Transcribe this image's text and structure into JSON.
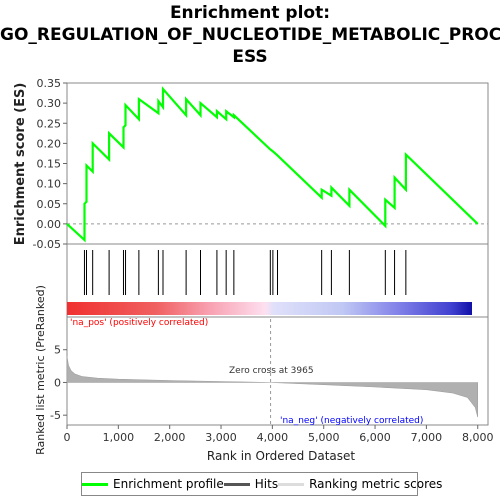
{
  "title": {
    "line1": "Enrichment plot:",
    "line2": "GO_REGULATION_OF_NUCLEOTIDE_METABOLIC_PROC",
    "line3": "ESS"
  },
  "colors": {
    "enrichment_line": "#00ff00",
    "hit_line": "#000000",
    "ranking_fill": "#b0b0b0",
    "pos_label": "#ff0000",
    "neg_label": "#0000ff",
    "zero_cross_line": "#999999"
  },
  "legend": {
    "enrichment_label": "Enrichment profile",
    "hits_label": "Hits",
    "ranking_label": "Ranking metric scores"
  },
  "chart_data": {
    "type": "line",
    "top_panel": {
      "ylabel": "Enrichment score (ES)",
      "ylim": [
        -0.05,
        0.35
      ],
      "yticks": [
        "-0.05",
        "0.00",
        "0.05",
        "0.10",
        "0.15",
        "0.20",
        "0.25",
        "0.30",
        "0.35"
      ],
      "series": [
        {
          "x": [
            0,
            340,
            340,
            380,
            380,
            500,
            500,
            820,
            820,
            1100,
            1100,
            1140,
            1140,
            1400,
            1400,
            1780,
            1780,
            1870,
            1870,
            2320,
            2320,
            2600,
            2600,
            2920,
            2920,
            3100,
            3100,
            3250,
            3250,
            3960,
            3960,
            4010,
            4010,
            4100,
            4100,
            4960,
            4960,
            5150,
            5150,
            5500,
            5500,
            6200,
            6200,
            6380,
            6380,
            6600,
            6600,
            8000
          ],
          "y": [
            0.0,
            -0.04,
            0.05,
            0.055,
            0.145,
            0.13,
            0.2,
            0.16,
            0.225,
            0.19,
            0.24,
            0.245,
            0.295,
            0.26,
            0.31,
            0.275,
            0.305,
            0.29,
            0.335,
            0.27,
            0.31,
            0.27,
            0.3,
            0.265,
            0.28,
            0.26,
            0.28,
            0.265,
            0.27,
            0.185,
            0.185,
            0.18,
            0.18,
            0.17,
            0.17,
            0.065,
            0.085,
            0.07,
            0.09,
            0.045,
            0.085,
            -0.005,
            0.06,
            0.04,
            0.115,
            0.085,
            0.172,
            0.0
          ]
        }
      ]
    },
    "hits": [
      340,
      380,
      500,
      820,
      1100,
      1140,
      1400,
      1780,
      1870,
      2320,
      2600,
      2920,
      3100,
      3250,
      3960,
      4010,
      4100,
      4960,
      5150,
      5500,
      6200,
      6380,
      6600
    ],
    "bottom_panel": {
      "ylabel": "Ranked list metric (PreRanked)",
      "xlabel": "Rank in Ordered Dataset",
      "ylim": [
        -6.5,
        10
      ],
      "yticks": [
        "-5",
        "0",
        "5"
      ],
      "xlim": [
        0,
        8200
      ],
      "xticks": [
        "0",
        "1,000",
        "2,000",
        "3,000",
        "4,000",
        "5,000",
        "6,000",
        "7,000",
        "8,000"
      ],
      "metric_curve": {
        "x": [
          0,
          30,
          80,
          150,
          300,
          600,
          1000,
          2000,
          3000,
          3965,
          5000,
          6000,
          7000,
          7500,
          7800,
          7950,
          8000
        ],
        "y": [
          4.0,
          2.6,
          1.8,
          1.3,
          0.9,
          0.65,
          0.5,
          0.3,
          0.15,
          0.0,
          -0.35,
          -0.7,
          -1.1,
          -1.6,
          -2.3,
          -3.8,
          -5.3
        ]
      },
      "zero_cross_label": "Zero cross at 3965",
      "zero_cross_x": 3965,
      "pos_label": "'na_pos' (positively correlated)",
      "neg_label": "'na_neg' (negatively correlated)"
    }
  }
}
